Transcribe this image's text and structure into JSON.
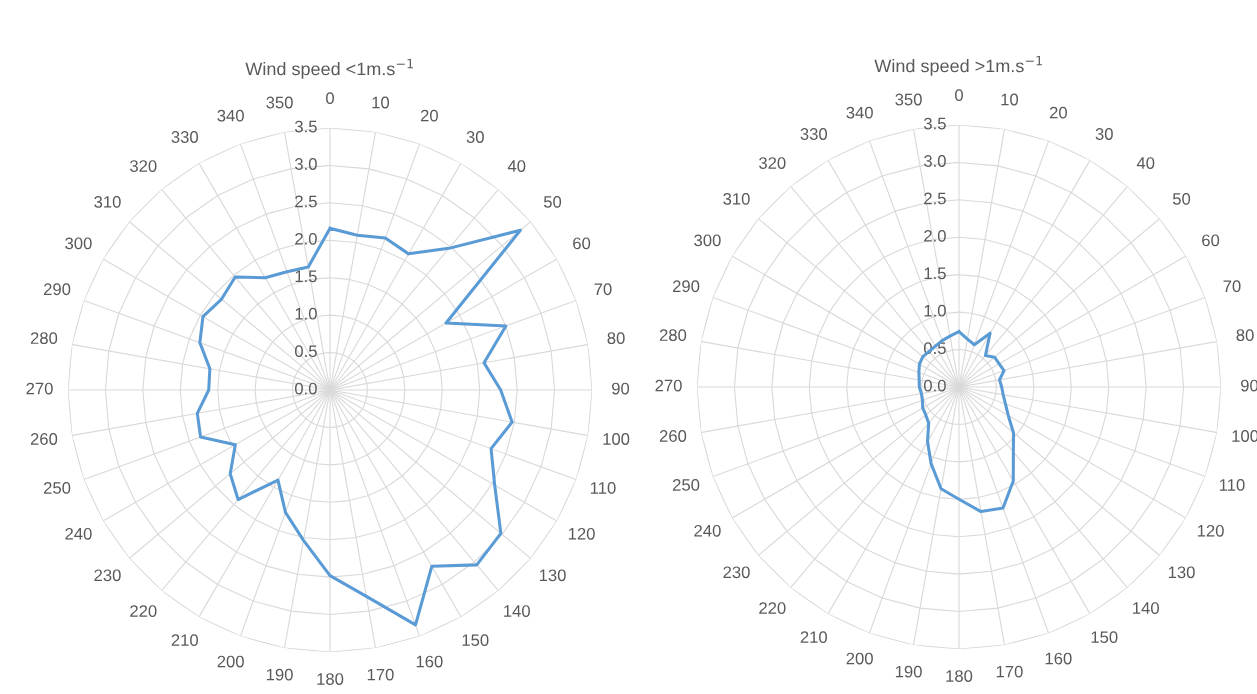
{
  "chart_data": [
    {
      "type": "radar",
      "title": "Wind speed <1m.s$^{−1}$",
      "categories": [
        "0",
        "10",
        "20",
        "30",
        "40",
        "50",
        "60",
        "70",
        "80",
        "90",
        "100",
        "110",
        "120",
        "130",
        "140",
        "150",
        "160",
        "170",
        "180",
        "190",
        "200",
        "210",
        "220",
        "230",
        "240",
        "250",
        "260",
        "270",
        "280",
        "290",
        "300",
        "310",
        "320",
        "330",
        "340",
        "350"
      ],
      "series": [
        {
          "color": "#5b9bd5",
          "values": [
            2.16,
            2.1,
            2.16,
            2.1,
            2.47,
            3.32,
            1.79,
            2.5,
            2.09,
            2.28,
            2.47,
            2.29,
            2.54,
            2.98,
            3.05,
            2.72,
            3.34,
            2.8,
            2.48,
            2.04,
            1.74,
            1.39,
            1.91,
            1.74,
            1.46,
            1.84,
            1.8,
            1.62,
            1.63,
            1.85,
            1.96,
            1.89,
            1.97,
            1.73,
            1.68,
            1.67
          ]
        }
      ],
      "ylim": [
        0,
        3.5
      ],
      "yticks": [
        {
          "value": 0,
          "label": "0.0"
        },
        {
          "value": 0.5,
          "label": "0.5"
        },
        {
          "value": 1,
          "label": "1.0"
        },
        {
          "value": 1.5,
          "label": "1.5"
        },
        {
          "value": 2,
          "label": "2.0"
        },
        {
          "value": 2.5,
          "label": "2.5"
        },
        {
          "value": 3,
          "label": "3.0"
        },
        {
          "value": 3.5,
          "label": "3.5"
        }
      ],
      "grid": true,
      "line_style": "solid",
      "marker": "none"
    },
    {
      "type": "radar",
      "title": "Wind speed >1m.s$^{−1}$",
      "categories": [
        "0",
        "10",
        "20",
        "30",
        "40",
        "50",
        "60",
        "70",
        "80",
        "90",
        "100",
        "110",
        "120",
        "130",
        "140",
        "150",
        "160",
        "170",
        "180",
        "190",
        "200",
        "210",
        "220",
        "230",
        "240",
        "250",
        "260",
        "270",
        "280",
        "290",
        "300",
        "310",
        "320",
        "330",
        "340",
        "350"
      ],
      "series": [
        {
          "color": "#5b9bd5",
          "values": [
            0.74,
            0.65,
            0.6,
            0.83,
            0.55,
            0.62,
            0.62,
            0.64,
            0.55,
            0.57,
            0.6,
            0.66,
            0.76,
            0.95,
            1.13,
            1.45,
            1.72,
            1.69,
            1.5,
            1.38,
            1.09,
            0.84,
            0.63,
            0.58,
            0.56,
            0.52,
            0.51,
            0.53,
            0.54,
            0.57,
            0.61,
            0.63,
            0.62,
            0.63,
            0.66,
            0.69
          ]
        }
      ],
      "ylim": [
        0,
        3.5
      ],
      "yticks": [
        {
          "value": 0,
          "label": "0.0"
        },
        {
          "value": 0.5,
          "label": "0.5"
        },
        {
          "value": 1,
          "label": "1.0"
        },
        {
          "value": 1.5,
          "label": "1.5"
        },
        {
          "value": 2,
          "label": "2.0"
        },
        {
          "value": 2.5,
          "label": "2.5"
        },
        {
          "value": 3,
          "label": "3.0"
        },
        {
          "value": 3.5,
          "label": "3.5"
        }
      ],
      "grid": true,
      "line_style": "solid",
      "marker": "none"
    }
  ]
}
